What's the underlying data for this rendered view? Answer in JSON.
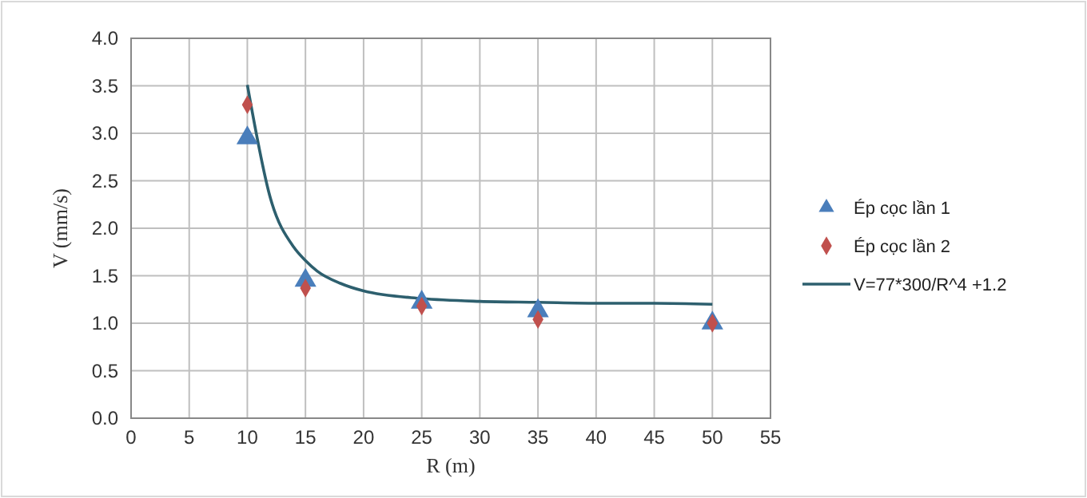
{
  "chart_data": {
    "type": "scatter",
    "xlabel": "R (m)",
    "ylabel": "V (mm/s)",
    "xlim": [
      0,
      55
    ],
    "xticks": [
      0,
      5,
      10,
      15,
      20,
      25,
      30,
      35,
      40,
      45,
      50,
      55
    ],
    "ylim": [
      0,
      4
    ],
    "yticks": [
      {
        "value": 0,
        "label": "0.0"
      },
      {
        "value": 0.5,
        "label": "0.5"
      },
      {
        "value": 1,
        "label": "1.0"
      },
      {
        "value": 1.5,
        "label": "1.5"
      },
      {
        "value": 2,
        "label": "2.0"
      },
      {
        "value": 2.5,
        "label": "2.5"
      },
      {
        "value": 3,
        "label": "3.0"
      },
      {
        "value": 3.5,
        "label": "3.5"
      },
      {
        "value": 4,
        "label": "4.0"
      }
    ],
    "grid": true,
    "legend": "right",
    "series": [
      {
        "name": "Ép cọc lần 1",
        "marker": "triangle",
        "color": "#4a7ebb",
        "x": [
          10,
          15,
          25,
          35,
          50
        ],
        "values": [
          2.95,
          1.45,
          1.22,
          1.13,
          1.0
        ]
      },
      {
        "name": "Ép cọc lần 2",
        "marker": "diamond",
        "color": "#c0504d",
        "x": [
          10,
          15,
          25,
          35,
          50
        ],
        "values": [
          3.3,
          1.37,
          1.18,
          1.04,
          1.0
        ]
      },
      {
        "name": "V=77*300/R^4 +1.2",
        "type": "line",
        "marker": "none",
        "color": "#2d5f6e",
        "x": [
          10,
          12,
          14,
          15,
          16,
          18,
          20,
          25,
          30,
          35,
          40,
          45,
          50
        ],
        "values": [
          3.51,
          2.31,
          1.8,
          1.66,
          1.55,
          1.42,
          1.34,
          1.26,
          1.23,
          1.22,
          1.21,
          1.21,
          1.2
        ]
      }
    ]
  }
}
